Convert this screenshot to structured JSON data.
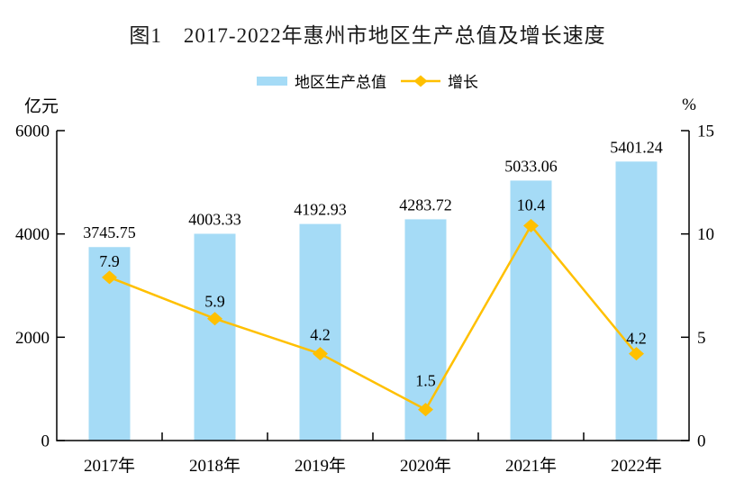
{
  "title": "图1　2017-2022年惠州市地区生产总值及增长速度",
  "legend": {
    "bar_label": "地区生产总值",
    "line_label": "增长"
  },
  "axes": {
    "left_unit": "亿元",
    "right_unit": "%"
  },
  "colors": {
    "bar": "#A5DBF6",
    "line": "#FFC000",
    "axis": "#000000",
    "text": "#000000"
  },
  "chart_data": {
    "type": "bar",
    "subtype": "bar-and-line-combo",
    "title": "图1 2017-2022年惠州市地区生产总值及增长速度",
    "categories": [
      "2017年",
      "2018年",
      "2019年",
      "2020年",
      "2021年",
      "2022年"
    ],
    "series": [
      {
        "name": "地区生产总值",
        "type": "bar",
        "axis": "left",
        "unit": "亿元",
        "values": [
          3745.75,
          4003.33,
          4192.93,
          4283.72,
          5033.06,
          5401.24
        ],
        "labels": [
          "3745.75",
          "4003.33",
          "4192.93",
          "4283.72",
          "5033.06",
          "5401.24"
        ]
      },
      {
        "name": "增长",
        "type": "line",
        "axis": "right",
        "unit": "%",
        "values": [
          7.9,
          5.9,
          4.2,
          1.5,
          10.4,
          4.2
        ],
        "labels": [
          "7.9",
          "5.9",
          "4.2",
          "1.5",
          "10.4",
          "4.2"
        ]
      }
    ],
    "left_axis": {
      "label": "亿元",
      "min": 0,
      "max": 6000,
      "ticks": [
        0,
        2000,
        4000,
        6000
      ]
    },
    "right_axis": {
      "label": "%",
      "min": 0,
      "max": 15,
      "ticks": [
        0,
        5,
        10,
        15
      ]
    },
    "legend_position": "top",
    "grid": false
  }
}
